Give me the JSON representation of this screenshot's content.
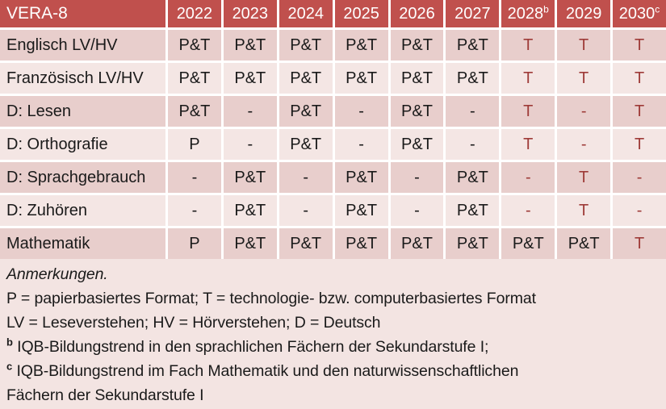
{
  "colors": {
    "header_bg": "#C0504D",
    "band_dark": "#E8CECC",
    "band_light": "#F4E6E4",
    "notes_bg": "#F3E4E2",
    "accent_text": "#9E3B38",
    "header_text": "#FFFFFF",
    "body_text": "#1A1A1A"
  },
  "table": {
    "title": "VERA-8",
    "header": [
      {
        "label": "2022"
      },
      {
        "label": "2023"
      },
      {
        "label": "2024"
      },
      {
        "label": "2025"
      },
      {
        "label": "2026"
      },
      {
        "label": "2027"
      },
      {
        "label": "2028",
        "sup": "b"
      },
      {
        "label": "2029"
      },
      {
        "label": "2030",
        "sup": "c"
      }
    ],
    "rows": [
      {
        "label": "Englisch LV/HV",
        "cells": [
          {
            "v": "P&T"
          },
          {
            "v": "P&T"
          },
          {
            "v": "P&T"
          },
          {
            "v": "P&T"
          },
          {
            "v": "P&T"
          },
          {
            "v": "P&T"
          },
          {
            "v": "T",
            "red": true
          },
          {
            "v": "T",
            "red": true
          },
          {
            "v": "T",
            "red": true
          }
        ]
      },
      {
        "label": "Französisch LV/HV",
        "cells": [
          {
            "v": "P&T"
          },
          {
            "v": "P&T"
          },
          {
            "v": "P&T"
          },
          {
            "v": "P&T"
          },
          {
            "v": "P&T"
          },
          {
            "v": "P&T"
          },
          {
            "v": "T",
            "red": true
          },
          {
            "v": "T",
            "red": true
          },
          {
            "v": "T",
            "red": true
          }
        ]
      },
      {
        "label": "D: Lesen",
        "cells": [
          {
            "v": "P&T"
          },
          {
            "v": "-"
          },
          {
            "v": "P&T"
          },
          {
            "v": "-"
          },
          {
            "v": "P&T"
          },
          {
            "v": "-"
          },
          {
            "v": "T",
            "red": true
          },
          {
            "v": "-",
            "red": true
          },
          {
            "v": "T",
            "red": true
          }
        ]
      },
      {
        "label": "D: Orthografie",
        "cells": [
          {
            "v": "P"
          },
          {
            "v": "-"
          },
          {
            "v": "P&T"
          },
          {
            "v": "-"
          },
          {
            "v": "P&T"
          },
          {
            "v": "-"
          },
          {
            "v": "T",
            "red": true
          },
          {
            "v": "-",
            "red": true
          },
          {
            "v": "T",
            "red": true
          }
        ]
      },
      {
        "label": "D: Sprachgebrauch",
        "cells": [
          {
            "v": "-"
          },
          {
            "v": "P&T"
          },
          {
            "v": "-"
          },
          {
            "v": "P&T"
          },
          {
            "v": "-"
          },
          {
            "v": "P&T"
          },
          {
            "v": "-",
            "red": true
          },
          {
            "v": "T",
            "red": true
          },
          {
            "v": "-",
            "red": true
          }
        ]
      },
      {
        "label": "D: Zuhören",
        "cells": [
          {
            "v": "-"
          },
          {
            "v": "P&T"
          },
          {
            "v": "-"
          },
          {
            "v": "P&T"
          },
          {
            "v": "-"
          },
          {
            "v": "P&T"
          },
          {
            "v": "-",
            "red": true
          },
          {
            "v": "T",
            "red": true
          },
          {
            "v": "-",
            "red": true
          }
        ]
      },
      {
        "label": "Mathematik",
        "cells": [
          {
            "v": "P"
          },
          {
            "v": "P&T"
          },
          {
            "v": "P&T"
          },
          {
            "v": "P&T"
          },
          {
            "v": "P&T"
          },
          {
            "v": "P&T"
          },
          {
            "v": "P&T"
          },
          {
            "v": "P&T"
          },
          {
            "v": "T",
            "red": true
          }
        ]
      }
    ]
  },
  "notes": {
    "lines": [
      {
        "text": "Anmerkungen.",
        "italic": true
      },
      {
        "text": "P = papierbasiertes Format; T = technologie- bzw. computerbasiertes Format"
      },
      {
        "text": "LV = Leseverstehen; HV = Hörverstehen; D = Deutsch"
      },
      {
        "sup": "b",
        "text": "IQB-Bildungstrend in den sprachlichen Fächern der Sekundarstufe I;"
      },
      {
        "sup": "c",
        "text": "IQB-Bildungstrend im Fach Mathematik und den naturwissenschaftlichen"
      },
      {
        "text": "Fächern der Sekundarstufe I"
      }
    ]
  }
}
